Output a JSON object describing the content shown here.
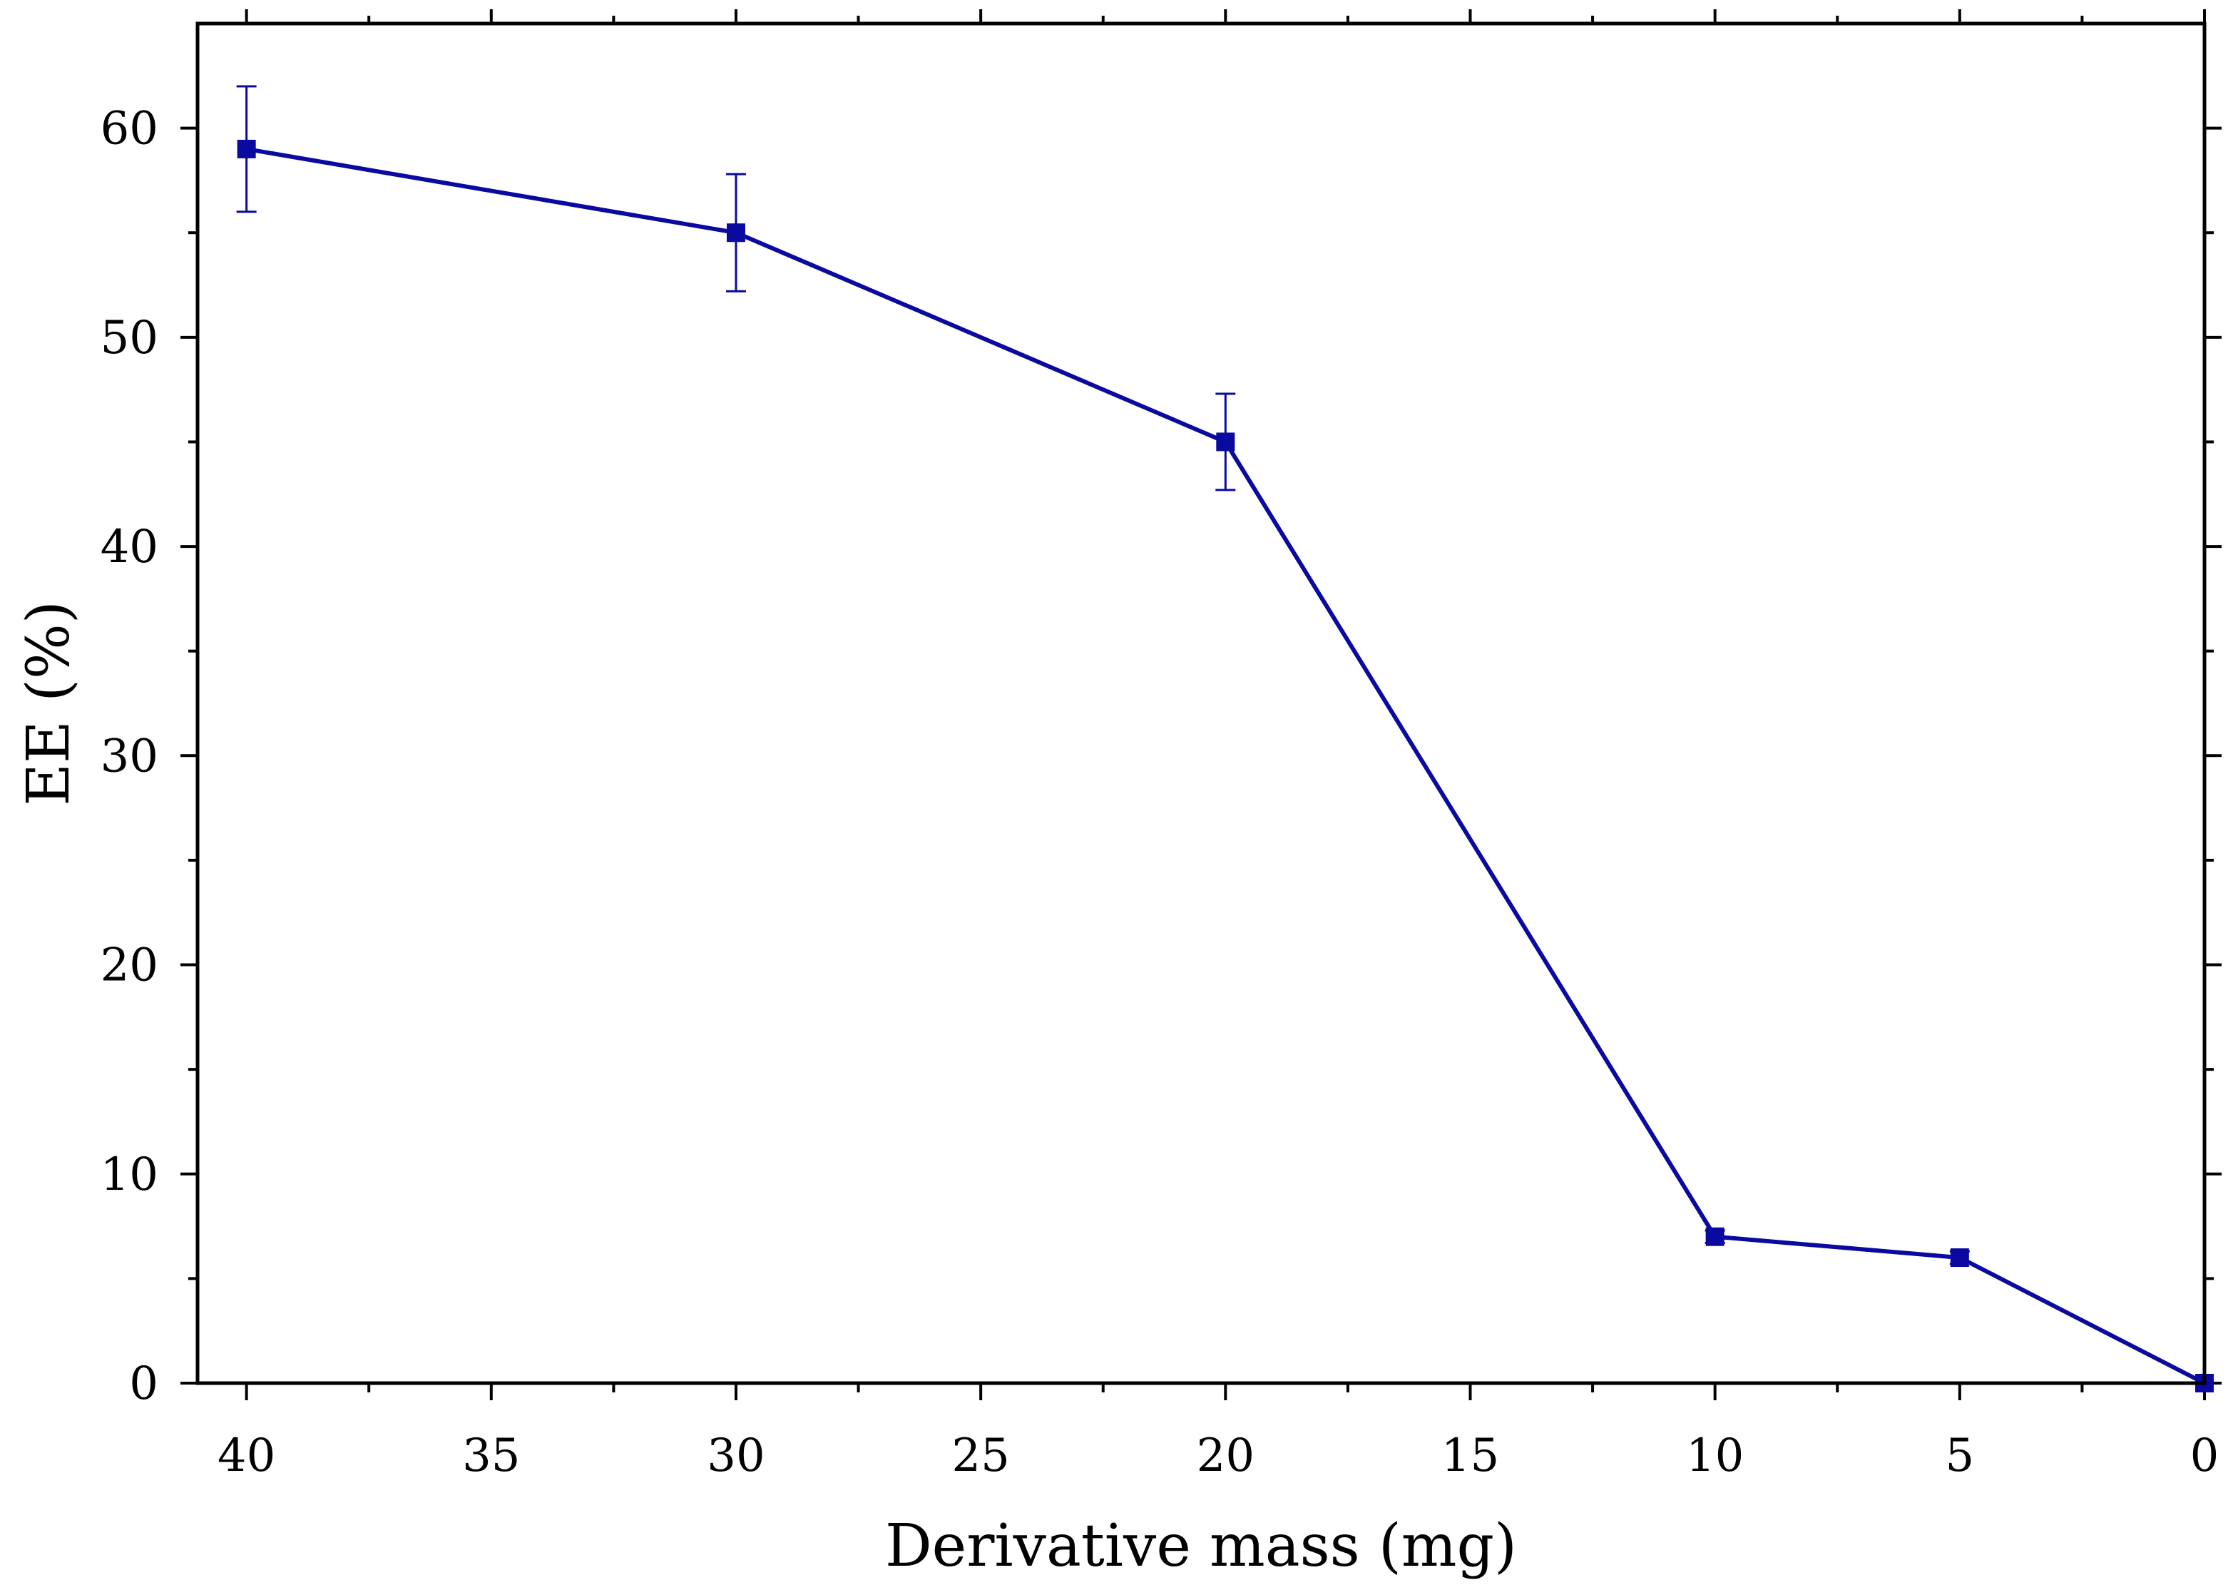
{
  "colors": {
    "series": "#0A0AA0",
    "axis": "#000000",
    "background": "#FFFFFF"
  },
  "chart_data": {
    "type": "line",
    "title": "",
    "xlabel": "Derivative mass (mg)",
    "ylabel": "EE (%)",
    "xlim": [
      41,
      0
    ],
    "ylim": [
      0,
      65
    ],
    "x_reversed": true,
    "grid": false,
    "legend": "none",
    "xticks": [
      40,
      35,
      30,
      25,
      20,
      15,
      10,
      5,
      0
    ],
    "xtick_labels": [
      "40",
      "35",
      "30",
      "25",
      "20",
      "15",
      "10",
      "5",
      "0"
    ],
    "xminor_ticks": [
      37.5,
      32.5,
      27.5,
      22.5,
      17.5,
      12.5,
      7.5,
      2.5
    ],
    "yticks": [
      0,
      10,
      20,
      30,
      40,
      50,
      60
    ],
    "ytick_labels": [
      "0",
      "10",
      "20",
      "30",
      "40",
      "50",
      "60"
    ],
    "yminor_ticks": [
      5,
      15,
      25,
      35,
      45,
      55
    ],
    "series": [
      {
        "name": "EE",
        "marker": "square",
        "x": [
          40,
          30,
          20,
          10,
          5,
          0
        ],
        "y": [
          59,
          55,
          45,
          7,
          6,
          0
        ],
        "error": [
          3.0,
          2.8,
          2.3,
          0.3,
          0.3,
          0
        ]
      }
    ]
  }
}
